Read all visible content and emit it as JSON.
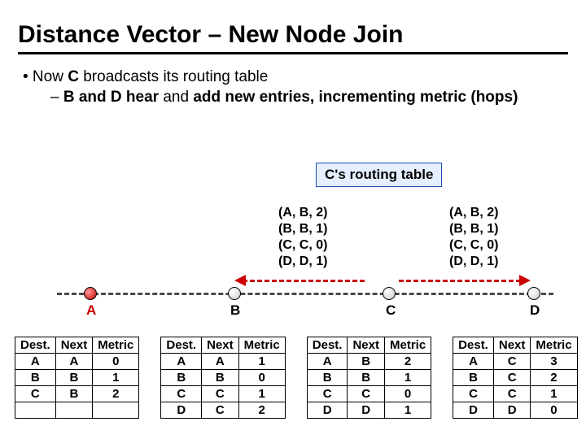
{
  "title": "Distance Vector – New Node Join",
  "bullet_top_prefix": "• Now ",
  "bullet_top_bold": "C",
  "bullet_top_suffix": " broadcasts its routing table",
  "bullet_sub_prefix": "– ",
  "bullet_sub_bold1": "B and D hear",
  "bullet_sub_mid": " and ",
  "bullet_sub_bold2": "add new entries, incrementing metric (hops)",
  "c_box_label": "C's routing table",
  "tuples_left": [
    "(A, B, 2)",
    "(B, B, 1)",
    "(C, C, 0)",
    "(D, D, 1)"
  ],
  "tuples_right": [
    "(A, B, 2)",
    "(B, B, 1)",
    "(C, C, 0)",
    "(D, D, 1)"
  ],
  "nodes": {
    "a": "A",
    "b": "B",
    "c": "C",
    "d": "D"
  },
  "headers": [
    "Dest.",
    "Next",
    "Metric"
  ],
  "table_a": [
    [
      "A",
      "A",
      "0"
    ],
    [
      "B",
      "B",
      "1"
    ],
    [
      "C",
      "B",
      "2"
    ]
  ],
  "table_b": [
    [
      "A",
      "A",
      "1"
    ],
    [
      "B",
      "B",
      "0"
    ],
    [
      "C",
      "C",
      "1"
    ],
    [
      "D",
      "C",
      "2"
    ]
  ],
  "table_c": [
    [
      "A",
      "B",
      "2"
    ],
    [
      "B",
      "B",
      "1"
    ],
    [
      "C",
      "C",
      "0"
    ],
    [
      "D",
      "D",
      "1"
    ]
  ],
  "table_d": [
    [
      "A",
      "C",
      "3"
    ],
    [
      "B",
      "C",
      "2"
    ],
    [
      "C",
      "C",
      "1"
    ],
    [
      "D",
      "D",
      "0"
    ]
  ],
  "colors": {
    "node_a_label": "#cc0000",
    "arrow": "#cc0000",
    "cbox_border": "#184fb2",
    "cbox_fill": "#e6efff",
    "table_d_bg": "#ffff80"
  }
}
